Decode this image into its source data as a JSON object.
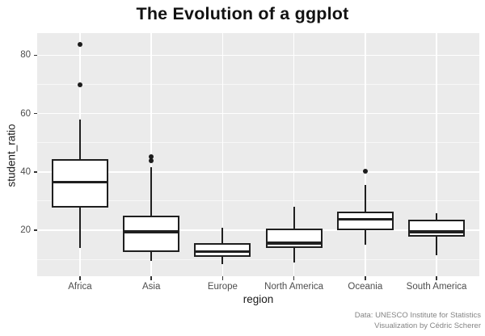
{
  "title": "The Evolution of a ggplot",
  "axes": {
    "x_title": "region",
    "y_title": "student_ratio"
  },
  "caption": {
    "line1": "Data: UNESCO Institute for Statistics",
    "line2": "Visualization by Cédric Scherer"
  },
  "colors": {
    "panel_bg": "#ebebeb",
    "grid_major": "#ffffff",
    "box_border": "#1f1f1f",
    "box_fill": "#ffffff",
    "axis_text": "#4d4d4d",
    "title_text": "#121212",
    "caption_text": "#848484"
  },
  "chart_data": {
    "type": "boxplot",
    "title": "The Evolution of a ggplot",
    "xlabel": "region",
    "ylabel": "student_ratio",
    "categories": [
      "Africa",
      "Asia",
      "Europe",
      "North America",
      "Oceania",
      "South America"
    ],
    "series": [
      {
        "category": "Africa",
        "whisker_low": 14.0,
        "q1": 27.7,
        "median": 36.5,
        "q3": 44.5,
        "whisker_high": 57.9,
        "outliers": [
          69.8,
          83.6
        ]
      },
      {
        "category": "Asia",
        "whisker_low": 9.5,
        "q1": 12.5,
        "median": 19.4,
        "q3": 25.1,
        "whisker_high": 41.6,
        "outliers": [
          43.9,
          45.3
        ]
      },
      {
        "category": "Europe",
        "whisker_low": 8.3,
        "q1": 10.9,
        "median": 12.7,
        "q3": 15.6,
        "whisker_high": 20.8,
        "outliers": []
      },
      {
        "category": "North America",
        "whisker_low": 8.9,
        "q1": 13.9,
        "median": 15.6,
        "q3": 20.6,
        "whisker_high": 28.1,
        "outliers": []
      },
      {
        "category": "Oceania",
        "whisker_low": 15.0,
        "q1": 20.0,
        "median": 23.7,
        "q3": 26.4,
        "whisker_high": 35.5,
        "outliers": [
          40.2
        ]
      },
      {
        "category": "South America",
        "whisker_low": 11.5,
        "q1": 17.8,
        "median": 19.4,
        "q3": 23.5,
        "whisker_high": 25.8,
        "outliers": []
      }
    ],
    "y_major_ticks": [
      20,
      40,
      60,
      80
    ],
    "y_minor_ticks": [
      10,
      30,
      50,
      70
    ],
    "ylim": [
      4.2,
      87.6
    ],
    "grid": true,
    "legend": "none"
  }
}
